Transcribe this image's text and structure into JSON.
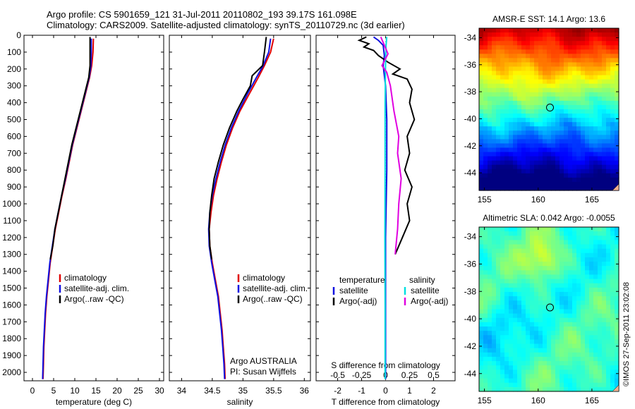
{
  "header": {
    "line1": "Argo profile: CS 5901659_121 31-Jul-2011 20110802_193 39.17S 161.098E",
    "line2": "Climatology: CARS2009. Satellite-adjusted climatology: synTS_20110729.nc (3d earlier)"
  },
  "depth_ticks": [
    "0",
    "100",
    "200",
    "300",
    "400",
    "500",
    "600",
    "700",
    "800",
    "900",
    "1000",
    "1100",
    "1200",
    "1300",
    "1400",
    "1500",
    "1600",
    "1700",
    "1800",
    "1900",
    "2000"
  ],
  "colors": {
    "climatology": "#e00000",
    "satellite": "#1010e0",
    "argo": "#000000",
    "sal_satellite": "#00e0e0",
    "sal_argo": "#e000e0"
  },
  "chart_data": [
    {
      "type": "line",
      "panel": "temperature",
      "xlabel": "temperature (deg C)",
      "xticks": [
        "0",
        "5",
        "10",
        "15",
        "20",
        "25",
        "30"
      ],
      "xlim": [
        -2,
        31
      ],
      "ylim": [
        2050,
        0
      ],
      "legend": [
        "climatology",
        "satellite-adj. clim.",
        "Argo(..raw -QC)"
      ],
      "series": [
        {
          "name": "climatology",
          "points": [
            [
              14.4,
              20
            ],
            [
              14.3,
              100
            ],
            [
              14.0,
              180
            ],
            [
              13.5,
              250
            ],
            [
              12.5,
              350
            ],
            [
              11.5,
              450
            ],
            [
              10.5,
              550
            ],
            [
              9.5,
              650
            ],
            [
              8.7,
              750
            ],
            [
              7.9,
              850
            ],
            [
              7.0,
              950
            ],
            [
              6.2,
              1050
            ],
            [
              5.4,
              1150
            ],
            [
              4.8,
              1250
            ],
            [
              4.2,
              1350
            ],
            [
              3.8,
              1450
            ],
            [
              3.4,
              1550
            ],
            [
              3.1,
              1650
            ],
            [
              2.9,
              1750
            ],
            [
              2.7,
              1850
            ],
            [
              2.6,
              1950
            ],
            [
              2.5,
              2040
            ]
          ]
        },
        {
          "name": "satellite-adj. clim.",
          "points": [
            [
              13.9,
              20
            ],
            [
              13.9,
              100
            ],
            [
              13.8,
              180
            ],
            [
              13.4,
              250
            ],
            [
              12.4,
              350
            ],
            [
              11.4,
              450
            ],
            [
              10.4,
              550
            ],
            [
              9.4,
              650
            ],
            [
              8.6,
              750
            ],
            [
              7.8,
              850
            ],
            [
              6.9,
              950
            ],
            [
              6.1,
              1050
            ],
            [
              5.3,
              1150
            ],
            [
              4.7,
              1250
            ],
            [
              4.1,
              1350
            ],
            [
              3.7,
              1450
            ],
            [
              3.3,
              1550
            ],
            [
              3.0,
              1650
            ],
            [
              2.8,
              1750
            ],
            [
              2.6,
              1850
            ],
            [
              2.5,
              1950
            ],
            [
              2.4,
              2040
            ]
          ]
        },
        {
          "name": "Argo(..raw -QC)",
          "points": [
            [
              13.6,
              10
            ],
            [
              13.6,
              100
            ],
            [
              13.6,
              180
            ],
            [
              13.3,
              250
            ],
            [
              12.3,
              350
            ],
            [
              11.3,
              450
            ],
            [
              10.3,
              550
            ],
            [
              9.3,
              650
            ],
            [
              8.5,
              750
            ],
            [
              7.7,
              850
            ],
            [
              6.9,
              950
            ],
            [
              6.1,
              1050
            ],
            [
              5.3,
              1150
            ],
            [
              4.8,
              1250
            ],
            [
              4.2,
              1330
            ]
          ]
        }
      ]
    },
    {
      "type": "line",
      "panel": "salinity",
      "xlabel": "salinity",
      "xticks": [
        "34",
        "34.5",
        "35",
        "35.5",
        "36"
      ],
      "xlim": [
        33.8,
        36.1
      ],
      "ylim": [
        2050,
        0
      ],
      "legend": [
        "climatology",
        "satellite-adj. clim.",
        "Argo(..raw -QC)"
      ],
      "annotation": [
        "Argo AUSTRALIA",
        "PI: Susan Wijffels"
      ],
      "series": [
        {
          "name": "climatology",
          "points": [
            [
              35.5,
              20
            ],
            [
              35.45,
              100
            ],
            [
              35.35,
              180
            ],
            [
              35.25,
              250
            ],
            [
              35.1,
              350
            ],
            [
              34.95,
              450
            ],
            [
              34.83,
              550
            ],
            [
              34.73,
              650
            ],
            [
              34.65,
              750
            ],
            [
              34.58,
              850
            ],
            [
              34.52,
              950
            ],
            [
              34.48,
              1050
            ],
            [
              34.45,
              1150
            ],
            [
              34.46,
              1250
            ],
            [
              34.5,
              1350
            ],
            [
              34.55,
              1450
            ],
            [
              34.6,
              1550
            ],
            [
              34.63,
              1650
            ],
            [
              34.66,
              1750
            ],
            [
              34.68,
              1850
            ],
            [
              34.7,
              1950
            ],
            [
              34.71,
              2040
            ]
          ]
        },
        {
          "name": "satellite-adj. clim.",
          "points": [
            [
              35.45,
              20
            ],
            [
              35.42,
              100
            ],
            [
              35.33,
              180
            ],
            [
              35.22,
              250
            ],
            [
              35.07,
              350
            ],
            [
              34.93,
              450
            ],
            [
              34.81,
              550
            ],
            [
              34.71,
              650
            ],
            [
              34.63,
              750
            ],
            [
              34.56,
              850
            ],
            [
              34.5,
              950
            ],
            [
              34.46,
              1050
            ],
            [
              34.44,
              1150
            ],
            [
              34.45,
              1250
            ],
            [
              34.49,
              1350
            ],
            [
              34.54,
              1450
            ],
            [
              34.59,
              1550
            ],
            [
              34.62,
              1650
            ],
            [
              34.65,
              1750
            ],
            [
              34.67,
              1850
            ],
            [
              34.69,
              1950
            ],
            [
              34.7,
              2040
            ]
          ]
        },
        {
          "name": "Argo(..raw -QC)",
          "points": [
            [
              35.38,
              10
            ],
            [
              35.35,
              100
            ],
            [
              35.32,
              180
            ],
            [
              35.15,
              240
            ],
            [
              35.12,
              300
            ],
            [
              35.0,
              380
            ],
            [
              34.9,
              450
            ],
            [
              34.78,
              550
            ],
            [
              34.68,
              650
            ],
            [
              34.6,
              750
            ],
            [
              34.53,
              850
            ],
            [
              34.49,
              950
            ],
            [
              34.46,
              1050
            ],
            [
              34.45,
              1150
            ],
            [
              34.46,
              1250
            ],
            [
              34.49,
              1330
            ]
          ]
        }
      ]
    },
    {
      "type": "line",
      "panel": "difference",
      "xlabel_bottom": "T difference from climatology",
      "xlabel_top": "S difference from climatology",
      "xticks_bottom": [
        "-2",
        "-1",
        "0",
        "1",
        "2"
      ],
      "xticks_top": [
        "-0.5",
        "-0.25",
        "0",
        "0.25",
        "0.5"
      ],
      "xlim": [
        -2.9,
        2.9
      ],
      "ylim": [
        2050,
        0
      ],
      "legend_temperature_title": "temperature",
      "legend_salinity_title": "salinity",
      "legend_temperature": [
        "satellite",
        "Argo(-adj)"
      ],
      "legend_salinity": [
        "satellite",
        "Argo(-adj)"
      ],
      "series": [
        {
          "name": "temperature satellite",
          "points": [
            [
              -0.5,
              10
            ],
            [
              -0.3,
              30
            ],
            [
              -0.1,
              60
            ],
            [
              -0.05,
              120
            ],
            [
              -0.1,
              180
            ],
            [
              0.0,
              300
            ],
            [
              0.05,
              500
            ],
            [
              0.05,
              800
            ],
            [
              0.0,
              1200
            ],
            [
              0.0,
              2040
            ]
          ]
        },
        {
          "name": "temperature Argo(-adj)",
          "points": [
            [
              -0.8,
              10
            ],
            [
              -1.1,
              30
            ],
            [
              -0.7,
              50
            ],
            [
              -0.9,
              70
            ],
            [
              -0.5,
              90
            ],
            [
              -0.3,
              120
            ],
            [
              0.1,
              160
            ],
            [
              0.6,
              200
            ],
            [
              0.3,
              230
            ],
            [
              0.9,
              260
            ],
            [
              1.1,
              320
            ],
            [
              1.0,
              400
            ],
            [
              1.2,
              500
            ],
            [
              0.9,
              600
            ],
            [
              1.0,
              700
            ],
            [
              0.8,
              800
            ],
            [
              1.1,
              900
            ],
            [
              0.9,
              1000
            ],
            [
              1.0,
              1100
            ],
            [
              0.7,
              1200
            ],
            [
              0.4,
              1300
            ]
          ]
        },
        {
          "name": "salinity satellite",
          "points": [
            [
              0.05,
              10
            ],
            [
              0.02,
              60
            ],
            [
              0.0,
              150
            ],
            [
              -0.02,
              400
            ],
            [
              -0.02,
              800
            ],
            [
              -0.03,
              1200
            ],
            [
              -0.02,
              1600
            ],
            [
              -0.02,
              2040
            ]
          ]
        },
        {
          "name": "salinity Argo(-adj)",
          "points": [
            [
              -0.2,
              10
            ],
            [
              -0.05,
              60
            ],
            [
              0.1,
              110
            ],
            [
              -0.15,
              180
            ],
            [
              0.05,
              220
            ],
            [
              0.2,
              300
            ],
            [
              0.35,
              450
            ],
            [
              0.55,
              600
            ],
            [
              0.5,
              700
            ],
            [
              0.65,
              850
            ],
            [
              0.55,
              1000
            ],
            [
              0.5,
              1150
            ],
            [
              0.4,
              1300
            ]
          ]
        }
      ]
    },
    {
      "type": "heatmap",
      "panel": "sst-map",
      "title": "AMSR-E SST: 14.1  Argo: 13.6",
      "xticks": [
        "155",
        "160",
        "165"
      ],
      "yticks": [
        "-34",
        "-36",
        "-38",
        "-40",
        "-42",
        "-44"
      ],
      "xlim": [
        154.5,
        167.5
      ],
      "ylim": [
        -45.3,
        -33.3
      ],
      "marker": {
        "lon": 161.098,
        "lat": -39.17
      }
    },
    {
      "type": "heatmap",
      "panel": "sla-map",
      "title": "Altimetric SLA: 0.042  Argo: -0.0055",
      "xticks": [
        "155",
        "160",
        "165"
      ],
      "yticks": [
        "-34",
        "-36",
        "-38",
        "-40",
        "-42",
        "-44"
      ],
      "xlim": [
        154.5,
        167.5
      ],
      "ylim": [
        -45.3,
        -33.3
      ],
      "marker": {
        "lon": 161.098,
        "lat": -39.17
      }
    }
  ],
  "stamp": "©IMOS 27-Sep-2011 23:02:08"
}
